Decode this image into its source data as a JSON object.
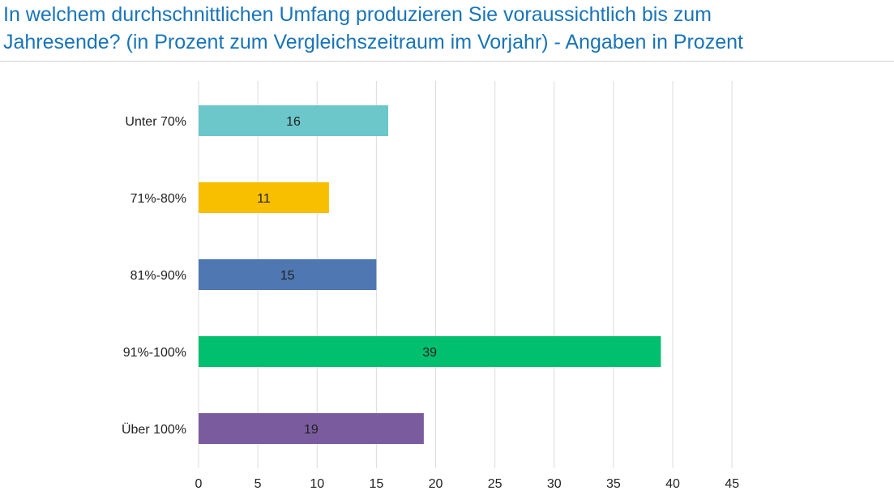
{
  "title": {
    "line1": "In welchem durchschnittlichen Umfang produzieren Sie voraussichtlich bis zum",
    "line2": "Jahresende? (in Prozent zum Vergleichszeitraum im Vorjahr) - Angaben in Prozent"
  },
  "chart_data": {
    "type": "bar",
    "orientation": "horizontal",
    "title": "In welchem durchschnittlichen Umfang produzieren Sie voraussichtlich bis zum Jahresende? (in Prozent zum Vergleichszeitraum im Vorjahr) - Angaben in Prozent",
    "categories": [
      "Unter 70%",
      "71%-80%",
      "81%-90%",
      "91%-100%",
      "Über 100%"
    ],
    "values": [
      16,
      11,
      15,
      39,
      19
    ],
    "colors": [
      "#6cc7cb",
      "#f7bf00",
      "#4f78b3",
      "#00bf6f",
      "#7a5c9e"
    ],
    "data_labels": [
      "16",
      "11",
      "15",
      "39",
      "19"
    ],
    "xlim": [
      0,
      45
    ],
    "xticks": [
      0,
      5,
      10,
      15,
      20,
      25,
      30,
      35,
      40,
      45
    ],
    "xlabel": "",
    "ylabel": "",
    "grid": true,
    "legend": false
  }
}
